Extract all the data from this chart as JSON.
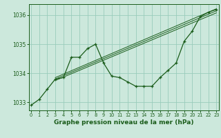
{
  "pressure_main": [
    1032.9,
    1033.1,
    1033.45,
    1033.8,
    1033.85,
    1034.55,
    1034.55,
    1034.85,
    1035.0,
    1034.35,
    1033.9,
    1033.85,
    1033.7,
    1033.55,
    1033.55,
    1033.55,
    1033.85,
    1034.1,
    1034.35,
    1035.1,
    1035.45,
    1035.95,
    1036.1,
    1036.2
  ],
  "x": [
    0,
    1,
    2,
    3,
    4,
    5,
    6,
    7,
    8,
    9,
    10,
    11,
    12,
    13,
    14,
    15,
    16,
    17,
    18,
    19,
    20,
    21,
    22,
    23
  ],
  "straight_lines": [
    {
      "x1": 3,
      "y1": 1033.75,
      "x2": 23,
      "y2": 1036.08
    },
    {
      "x1": 3,
      "y1": 1033.8,
      "x2": 23,
      "y2": 1036.15
    },
    {
      "x1": 3,
      "y1": 1033.85,
      "x2": 23,
      "y2": 1036.22
    }
  ],
  "xlabel": "Graphe pression niveau de la mer (hPa)",
  "xlim": [
    -0.3,
    23.3
  ],
  "ylim": [
    1032.72,
    1036.38
  ],
  "yticks": [
    1033,
    1034,
    1035,
    1036
  ],
  "xticks": [
    0,
    1,
    2,
    3,
    4,
    5,
    6,
    7,
    8,
    9,
    10,
    11,
    12,
    13,
    14,
    15,
    16,
    17,
    18,
    19,
    20,
    21,
    22,
    23
  ],
  "bg_color": "#cce8dc",
  "grid_color": "#99ccbb",
  "line_color": "#1a5c1a",
  "font_color": "#1a5c1a",
  "xlabel_fontsize": 6.5,
  "ytick_fontsize": 5.5,
  "xtick_fontsize": 4.8
}
